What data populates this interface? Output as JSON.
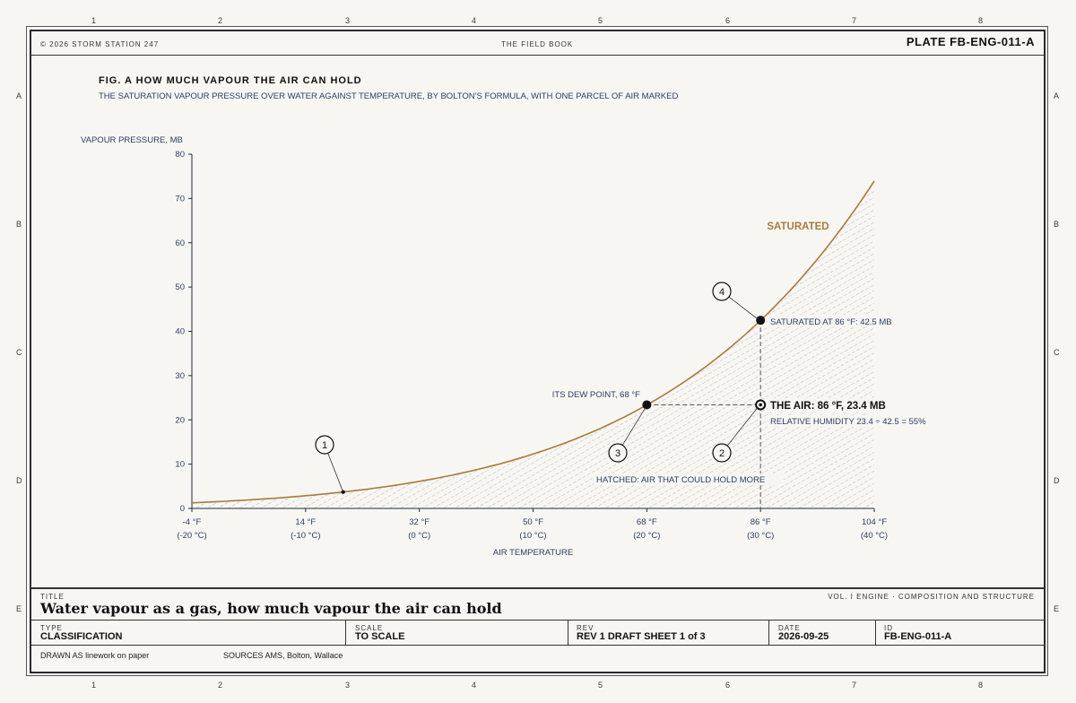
{
  "header": {
    "copyright": "© 2026 STORM STATION 247",
    "book": "THE FIELD BOOK",
    "plate": "PLATE FB-ENG-011-A"
  },
  "grid": {
    "columns": [
      "1",
      "2",
      "3",
      "4",
      "5",
      "6",
      "7",
      "8"
    ],
    "rows": [
      "A",
      "B",
      "C",
      "D",
      "E"
    ]
  },
  "figure": {
    "title": "FIG. A HOW MUCH VAPOUR THE AIR CAN HOLD",
    "subtitle": "THE SATURATION VAPOUR PRESSURE OVER WATER AGAINST TEMPERATURE, BY BOLTON'S FORMULA, WITH ONE PARCEL OF AIR MARKED"
  },
  "chart_data": {
    "type": "area",
    "ylabel": "VAPOUR PRESSURE, MB",
    "xlabel": "AIR TEMPERATURE",
    "xlim": [
      -20,
      40
    ],
    "ylim": [
      0,
      80
    ],
    "yticks": [
      0,
      10,
      20,
      30,
      40,
      50,
      60,
      70,
      80
    ],
    "xticks": [
      {
        "c": -20,
        "f": "-4 °F",
        "cl": "(-20 °C)"
      },
      {
        "c": -10,
        "f": "14 °F",
        "cl": "(-10 °C)"
      },
      {
        "c": 0,
        "f": "32 °F",
        "cl": "(0 °C)"
      },
      {
        "c": 10,
        "f": "50 °F",
        "cl": "(10 °C)"
      },
      {
        "c": 20,
        "f": "68 °F",
        "cl": "(20 °C)"
      },
      {
        "c": 30,
        "f": "86 °F",
        "cl": "(30 °C)"
      },
      {
        "c": 40,
        "f": "104 °F",
        "cl": "(40 °C)"
      }
    ],
    "series": [
      {
        "name": "SATURATED",
        "x": [
          -20,
          -15,
          -10,
          -5,
          0,
          5,
          10,
          15,
          20,
          25,
          30,
          35,
          40
        ],
        "y": [
          1.3,
          1.9,
          2.9,
          4.2,
          6.1,
          8.7,
          12.3,
          17.0,
          23.4,
          31.7,
          42.5,
          56.3,
          73.8
        ]
      }
    ],
    "points": [
      {
        "x": 30,
        "y": 23.4,
        "label": "THE AIR: 86 °F, 23.4 MB",
        "sub": "RELATIVE HUMIDITY 23.4 ÷ 42.5 = 55%"
      },
      {
        "x": 30,
        "y": 42.5,
        "label": "SATURATED AT 86 °F: 42.5 MB"
      },
      {
        "x": 20,
        "y": 23.4,
        "label": "ITS DEW POINT, 68 °F"
      },
      {
        "x": -6.7,
        "y": 3.7
      }
    ],
    "annotations": {
      "curve_label": "SATURATED",
      "hatch_label": "HATCHED: AIR THAT COULD HOLD MORE"
    },
    "callouts": [
      "1",
      "2",
      "3",
      "4"
    ],
    "colors": {
      "curve": "#a87c3a",
      "ink": "#1f2d3d",
      "label": "#2c3e64"
    }
  },
  "titleblock": {
    "title_label": "TITLE",
    "title": "Water vapour as a gas, how much vapour the air can hold",
    "volume": "VOL. I ENGINE · COMPOSITION AND STRUCTURE",
    "type_label": "TYPE",
    "type": "CLASSIFICATION",
    "scale_label": "SCALE",
    "scale": "TO SCALE",
    "rev_label": "REV",
    "rev": "REV 1 DRAFT SHEET 1 of 3",
    "date_label": "DATE",
    "date": "2026-09-25",
    "id_label": "ID",
    "id": "FB-ENG-011-A",
    "drawn": "DRAWN AS linework on paper",
    "sources": "SOURCES AMS, Bolton, Wallace"
  }
}
